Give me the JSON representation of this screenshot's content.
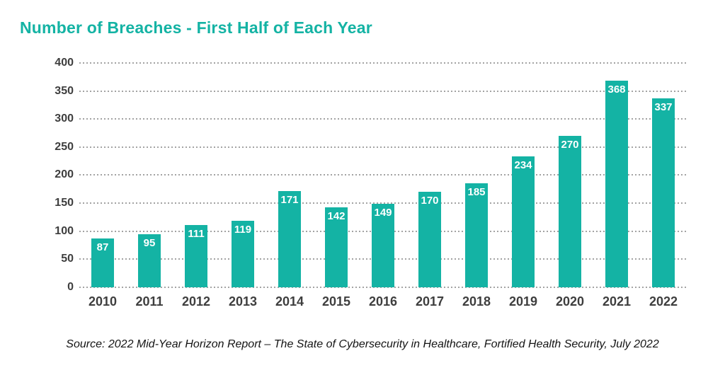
{
  "page": {
    "title": "Number of Breaches - First Half of Each Year",
    "source": "Source: 2022 Mid-Year Horizon Report – The State of Cybersecurity in Healthcare, Fortified Health Security, July 2022"
  },
  "colors": {
    "accent": "#14b3a4",
    "title_text": "#14b3a4",
    "axis_text": "#3e3e3e",
    "grid": "#a3a3a3",
    "value_label": "#ffffff",
    "background": "#ffffff"
  },
  "chart_data": {
    "type": "bar",
    "title": "Number of Breaches - First Half of Each Year",
    "categories": [
      "2010",
      "2011",
      "2012",
      "2013",
      "2014",
      "2015",
      "2016",
      "2017",
      "2018",
      "2019",
      "2020",
      "2021",
      "2022"
    ],
    "values": [
      87,
      95,
      111,
      119,
      171,
      142,
      149,
      170,
      185,
      234,
      270,
      368,
      337
    ],
    "xlabel": "",
    "ylabel": "",
    "ylim": [
      0,
      400
    ],
    "yticks": [
      0,
      50,
      100,
      150,
      200,
      250,
      300,
      350,
      400
    ],
    "grid": "horizontal dotted lines at each y tick, including zero line",
    "legend_position": "none",
    "value_label_position": "inside bar top, white bold",
    "bar_color": "#14b3a4"
  }
}
